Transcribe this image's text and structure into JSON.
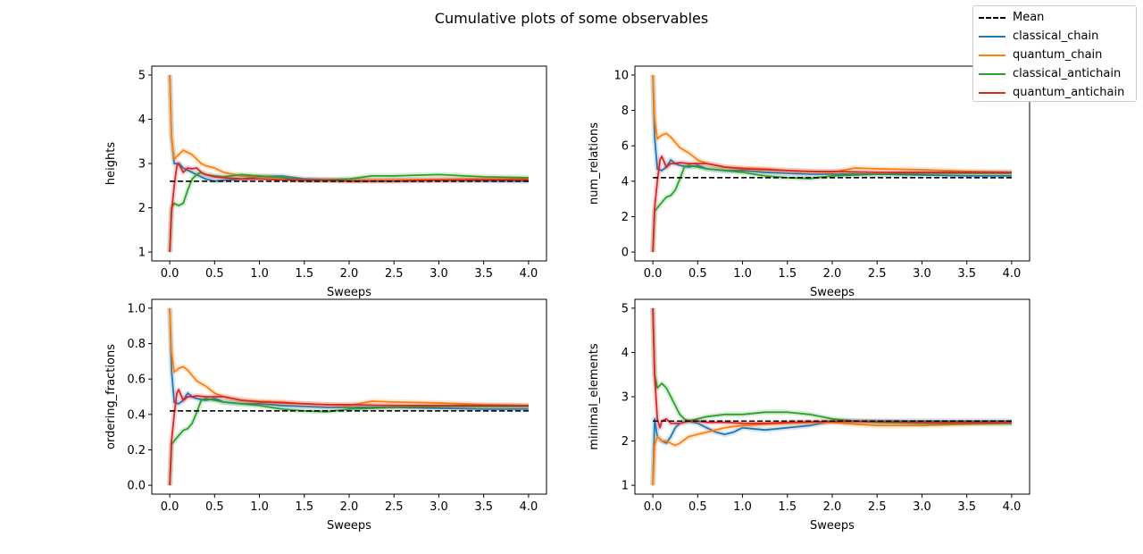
{
  "figure": {
    "title": "Cumulative plots of some observables"
  },
  "legend": {
    "entries": [
      {
        "label": "Mean",
        "color": "#000000",
        "style": "dashed"
      },
      {
        "label": "classical_chain",
        "color": "#1f77b4",
        "style": "solid"
      },
      {
        "label": "quantum_chain",
        "color": "#ff7f0e",
        "style": "solid"
      },
      {
        "label": "classical_antichain",
        "color": "#2ca02c",
        "style": "solid"
      },
      {
        "label": "quantum_antichain",
        "color": "#d62728",
        "style": "solid"
      }
    ]
  },
  "chart_data": [
    {
      "type": "line",
      "title": "",
      "xlabel": "Sweeps",
      "ylabel": "heights",
      "xlim": [
        -0.2,
        4.2
      ],
      "ylim": [
        0.8,
        5.2
      ],
      "xticks": [
        0.0,
        0.5,
        1.0,
        1.5,
        2.0,
        2.5,
        3.0,
        3.5,
        4.0
      ],
      "xtick_labels": [
        "0.0",
        "0.5",
        "1.0",
        "1.5",
        "2.0",
        "2.5",
        "3.0",
        "3.5",
        "4.0"
      ],
      "yticks": [
        1,
        2,
        3,
        4,
        5
      ],
      "ytick_labels": [
        "1",
        "2",
        "3",
        "4",
        "5"
      ],
      "mean": 2.6,
      "series": [
        {
          "name": "classical_chain",
          "x": [
            0,
            0.02,
            0.05,
            0.1,
            0.15,
            0.2,
            0.25,
            0.3,
            0.35,
            0.4,
            0.5,
            0.6,
            0.8,
            1.0,
            1.25,
            1.5,
            1.75,
            2.0,
            2.5,
            3.0,
            3.5,
            4.0
          ],
          "y": [
            5,
            3.6,
            3.0,
            3.0,
            2.9,
            2.85,
            2.8,
            2.75,
            2.7,
            2.65,
            2.6,
            2.62,
            2.65,
            2.7,
            2.72,
            2.65,
            2.63,
            2.62,
            2.62,
            2.62,
            2.61,
            2.6
          ]
        },
        {
          "name": "quantum_chain",
          "x": [
            0,
            0.02,
            0.05,
            0.1,
            0.15,
            0.2,
            0.25,
            0.3,
            0.35,
            0.4,
            0.5,
            0.6,
            0.8,
            1.0,
            1.25,
            1.5,
            1.75,
            2.0,
            2.5,
            3.0,
            3.5,
            4.0
          ],
          "y": [
            5,
            3.6,
            3.1,
            3.2,
            3.3,
            3.25,
            3.2,
            3.1,
            3.0,
            2.95,
            2.9,
            2.8,
            2.72,
            2.7,
            2.68,
            2.62,
            2.62,
            2.62,
            2.63,
            2.64,
            2.65,
            2.65
          ]
        },
        {
          "name": "classical_antichain",
          "x": [
            0,
            0.02,
            0.05,
            0.1,
            0.15,
            0.2,
            0.25,
            0.3,
            0.35,
            0.4,
            0.5,
            0.6,
            0.8,
            1.0,
            1.25,
            1.5,
            1.75,
            2.0,
            2.25,
            2.5,
            3.0,
            3.5,
            4.0
          ],
          "y": [
            1,
            2.0,
            2.1,
            2.05,
            2.1,
            2.4,
            2.65,
            2.75,
            2.8,
            2.75,
            2.72,
            2.7,
            2.75,
            2.72,
            2.68,
            2.62,
            2.63,
            2.65,
            2.72,
            2.72,
            2.75,
            2.7,
            2.68
          ]
        },
        {
          "name": "quantum_antichain",
          "x": [
            0,
            0.02,
            0.05,
            0.08,
            0.1,
            0.15,
            0.2,
            0.25,
            0.3,
            0.35,
            0.4,
            0.5,
            0.6,
            0.8,
            1.0,
            1.25,
            1.5,
            1.75,
            2.0,
            2.5,
            3.0,
            3.5,
            4.0
          ],
          "y": [
            1,
            1.9,
            2.5,
            2.95,
            3.0,
            2.8,
            2.9,
            2.88,
            2.9,
            2.8,
            2.75,
            2.7,
            2.68,
            2.65,
            2.65,
            2.63,
            2.62,
            2.62,
            2.6,
            2.6,
            2.62,
            2.63,
            2.63
          ]
        }
      ]
    },
    {
      "type": "line",
      "title": "",
      "xlabel": "Sweeps",
      "ylabel": "num_relations",
      "xlim": [
        -0.2,
        4.2
      ],
      "ylim": [
        -0.5,
        10.5
      ],
      "xticks": [
        0.0,
        0.5,
        1.0,
        1.5,
        2.0,
        2.5,
        3.0,
        3.5,
        4.0
      ],
      "xtick_labels": [
        "0.0",
        "0.5",
        "1.0",
        "1.5",
        "2.0",
        "2.5",
        "3.0",
        "3.5",
        "4.0"
      ],
      "yticks": [
        0,
        2,
        4,
        6,
        8,
        10
      ],
      "ytick_labels": [
        "0",
        "2",
        "4",
        "6",
        "8",
        "10"
      ],
      "mean": 4.2,
      "series": [
        {
          "name": "classical_chain",
          "x": [
            0,
            0.02,
            0.05,
            0.1,
            0.15,
            0.2,
            0.25,
            0.3,
            0.4,
            0.5,
            0.6,
            0.8,
            1.0,
            1.25,
            1.5,
            1.75,
            2.0,
            2.5,
            3.0,
            3.5,
            4.0
          ],
          "y": [
            10,
            6.5,
            4.7,
            4.6,
            4.8,
            5.2,
            5.0,
            4.9,
            4.8,
            4.9,
            4.7,
            4.6,
            4.6,
            4.5,
            4.45,
            4.4,
            4.4,
            4.4,
            4.35,
            4.3,
            4.3
          ]
        },
        {
          "name": "quantum_chain",
          "x": [
            0,
            0.02,
            0.05,
            0.1,
            0.15,
            0.2,
            0.25,
            0.3,
            0.4,
            0.5,
            0.6,
            0.8,
            1.0,
            1.25,
            1.5,
            1.75,
            2.0,
            2.25,
            2.5,
            3.0,
            3.5,
            4.0
          ],
          "y": [
            10,
            7.5,
            6.4,
            6.6,
            6.7,
            6.5,
            6.2,
            5.9,
            5.6,
            5.2,
            5.0,
            4.8,
            4.75,
            4.7,
            4.6,
            4.55,
            4.5,
            4.75,
            4.7,
            4.65,
            4.55,
            4.5
          ]
        },
        {
          "name": "classical_antichain",
          "x": [
            0,
            0.02,
            0.05,
            0.1,
            0.15,
            0.2,
            0.25,
            0.3,
            0.35,
            0.4,
            0.5,
            0.6,
            0.8,
            1.0,
            1.25,
            1.5,
            1.75,
            2.0,
            2.5,
            3.0,
            3.5,
            4.0
          ],
          "y": [
            0,
            2.3,
            2.5,
            2.8,
            3.1,
            3.2,
            3.5,
            4.1,
            4.8,
            4.9,
            4.8,
            4.7,
            4.6,
            4.5,
            4.3,
            4.2,
            4.15,
            4.3,
            4.4,
            4.45,
            4.45,
            4.45
          ]
        },
        {
          "name": "quantum_antichain",
          "x": [
            0,
            0.02,
            0.05,
            0.08,
            0.1,
            0.15,
            0.2,
            0.25,
            0.3,
            0.4,
            0.5,
            0.6,
            0.8,
            1.0,
            1.25,
            1.5,
            1.75,
            2.0,
            2.5,
            3.0,
            3.5,
            4.0
          ],
          "y": [
            0,
            2.5,
            4.0,
            5.2,
            5.4,
            4.8,
            5.0,
            5.0,
            5.05,
            5.0,
            5.0,
            5.0,
            4.8,
            4.7,
            4.65,
            4.6,
            4.55,
            4.55,
            4.5,
            4.5,
            4.5,
            4.5
          ]
        }
      ]
    },
    {
      "type": "line",
      "title": "",
      "xlabel": "Sweeps",
      "ylabel": "ordering_fractions",
      "xlim": [
        -0.2,
        4.2
      ],
      "ylim": [
        -0.05,
        1.05
      ],
      "xticks": [
        0.0,
        0.5,
        1.0,
        1.5,
        2.0,
        2.5,
        3.0,
        3.5,
        4.0
      ],
      "xtick_labels": [
        "0.0",
        "0.5",
        "1.0",
        "1.5",
        "2.0",
        "2.5",
        "3.0",
        "3.5",
        "4.0"
      ],
      "yticks": [
        0.0,
        0.2,
        0.4,
        0.6,
        0.8,
        1.0
      ],
      "ytick_labels": [
        "0.0",
        "0.2",
        "0.4",
        "0.6",
        "0.8",
        "1.0"
      ],
      "mean": 0.42,
      "series": [
        {
          "name": "classical_chain",
          "x": [
            0,
            0.02,
            0.05,
            0.1,
            0.15,
            0.2,
            0.25,
            0.3,
            0.4,
            0.5,
            0.6,
            0.8,
            1.0,
            1.25,
            1.5,
            1.75,
            2.0,
            2.5,
            3.0,
            3.5,
            4.0
          ],
          "y": [
            1.0,
            0.65,
            0.47,
            0.46,
            0.48,
            0.52,
            0.5,
            0.49,
            0.48,
            0.49,
            0.47,
            0.46,
            0.46,
            0.45,
            0.445,
            0.44,
            0.44,
            0.44,
            0.435,
            0.43,
            0.43
          ]
        },
        {
          "name": "quantum_chain",
          "x": [
            0,
            0.02,
            0.05,
            0.1,
            0.15,
            0.2,
            0.25,
            0.3,
            0.4,
            0.5,
            0.6,
            0.8,
            1.0,
            1.25,
            1.5,
            1.75,
            2.0,
            2.25,
            2.5,
            3.0,
            3.5,
            4.0
          ],
          "y": [
            1.0,
            0.75,
            0.64,
            0.66,
            0.67,
            0.65,
            0.62,
            0.59,
            0.56,
            0.52,
            0.5,
            0.48,
            0.475,
            0.47,
            0.46,
            0.455,
            0.45,
            0.475,
            0.47,
            0.465,
            0.455,
            0.45
          ]
        },
        {
          "name": "classical_antichain",
          "x": [
            0,
            0.02,
            0.05,
            0.1,
            0.15,
            0.2,
            0.25,
            0.3,
            0.35,
            0.4,
            0.5,
            0.6,
            0.8,
            1.0,
            1.25,
            1.5,
            1.75,
            2.0,
            2.5,
            3.0,
            3.5,
            4.0
          ],
          "y": [
            0.0,
            0.23,
            0.25,
            0.28,
            0.31,
            0.32,
            0.35,
            0.41,
            0.48,
            0.49,
            0.48,
            0.47,
            0.46,
            0.45,
            0.43,
            0.42,
            0.415,
            0.43,
            0.44,
            0.445,
            0.445,
            0.445
          ]
        },
        {
          "name": "quantum_antichain",
          "x": [
            0,
            0.02,
            0.05,
            0.08,
            0.1,
            0.15,
            0.2,
            0.25,
            0.3,
            0.4,
            0.5,
            0.6,
            0.8,
            1.0,
            1.25,
            1.5,
            1.75,
            2.0,
            2.5,
            3.0,
            3.5,
            4.0
          ],
          "y": [
            0.0,
            0.25,
            0.4,
            0.52,
            0.54,
            0.48,
            0.5,
            0.5,
            0.505,
            0.5,
            0.5,
            0.5,
            0.48,
            0.47,
            0.465,
            0.46,
            0.455,
            0.455,
            0.45,
            0.45,
            0.45,
            0.45
          ]
        }
      ]
    },
    {
      "type": "line",
      "title": "",
      "xlabel": "Sweeps",
      "ylabel": "minimal_elements",
      "xlim": [
        -0.2,
        4.2
      ],
      "ylim": [
        0.8,
        5.2
      ],
      "xticks": [
        0.0,
        0.5,
        1.0,
        1.5,
        2.0,
        2.5,
        3.0,
        3.5,
        4.0
      ],
      "xtick_labels": [
        "0.0",
        "0.5",
        "1.0",
        "1.5",
        "2.0",
        "2.5",
        "3.0",
        "3.5",
        "4.0"
      ],
      "yticks": [
        1,
        2,
        3,
        4,
        5
      ],
      "ytick_labels": [
        "1",
        "2",
        "3",
        "4",
        "5"
      ],
      "mean": 2.45,
      "series": [
        {
          "name": "classical_chain",
          "x": [
            0,
            0.02,
            0.05,
            0.1,
            0.15,
            0.2,
            0.25,
            0.3,
            0.4,
            0.5,
            0.6,
            0.7,
            0.8,
            0.9,
            1.0,
            1.25,
            1.5,
            1.75,
            2.0,
            2.5,
            3.0,
            3.5,
            4.0
          ],
          "y": [
            1.0,
            2.5,
            2.1,
            2.0,
            1.95,
            2.1,
            2.3,
            2.4,
            2.45,
            2.4,
            2.3,
            2.2,
            2.15,
            2.2,
            2.3,
            2.25,
            2.3,
            2.35,
            2.45,
            2.45,
            2.45,
            2.45,
            2.45
          ]
        },
        {
          "name": "quantum_chain",
          "x": [
            0,
            0.02,
            0.05,
            0.1,
            0.15,
            0.2,
            0.25,
            0.3,
            0.4,
            0.5,
            0.6,
            0.8,
            1.0,
            1.25,
            1.5,
            1.75,
            2.0,
            2.25,
            2.5,
            3.0,
            3.5,
            4.0
          ],
          "y": [
            1.0,
            1.9,
            2.1,
            2.0,
            2.0,
            1.95,
            1.9,
            1.95,
            2.1,
            2.15,
            2.2,
            2.3,
            2.35,
            2.38,
            2.4,
            2.42,
            2.42,
            2.38,
            2.35,
            2.35,
            2.38,
            2.4
          ]
        },
        {
          "name": "classical_antichain",
          "x": [
            0,
            0.02,
            0.05,
            0.1,
            0.15,
            0.2,
            0.25,
            0.3,
            0.35,
            0.4,
            0.5,
            0.6,
            0.8,
            1.0,
            1.25,
            1.5,
            1.75,
            2.0,
            2.25,
            2.5,
            3.0,
            3.5,
            4.0
          ],
          "y": [
            5.0,
            3.5,
            3.2,
            3.3,
            3.2,
            3.0,
            2.8,
            2.6,
            2.5,
            2.45,
            2.5,
            2.55,
            2.6,
            2.6,
            2.65,
            2.65,
            2.6,
            2.5,
            2.45,
            2.42,
            2.4,
            2.4,
            2.4
          ]
        },
        {
          "name": "quantum_antichain",
          "x": [
            0,
            0.02,
            0.05,
            0.08,
            0.1,
            0.15,
            0.2,
            0.25,
            0.3,
            0.4,
            0.5,
            0.6,
            0.8,
            1.0,
            1.25,
            1.5,
            1.75,
            2.0,
            2.5,
            3.0,
            3.5,
            4.0
          ],
          "y": [
            5.0,
            3.5,
            2.5,
            2.3,
            2.45,
            2.5,
            2.4,
            2.4,
            2.4,
            2.45,
            2.45,
            2.42,
            2.42,
            2.4,
            2.4,
            2.42,
            2.43,
            2.44,
            2.44,
            2.42,
            2.42,
            2.42
          ]
        }
      ]
    }
  ]
}
